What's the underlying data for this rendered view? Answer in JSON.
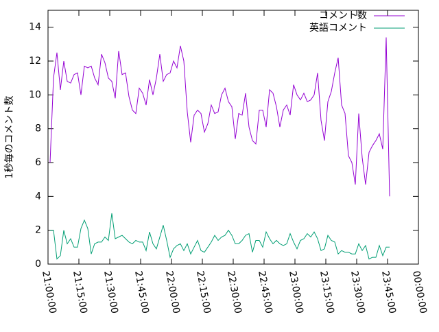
{
  "chart_data": {
    "type": "line",
    "ylabel": "1秒毎のコメント数",
    "x": [
      "21:01:00",
      "21:02:40",
      "21:04:20",
      "21:06:00",
      "21:07:40",
      "21:09:20",
      "21:11:00",
      "21:12:40",
      "21:14:20",
      "21:16:00",
      "21:17:40",
      "21:19:20",
      "21:21:00",
      "21:22:40",
      "21:24:20",
      "21:26:00",
      "21:27:40",
      "21:29:20",
      "21:31:00",
      "21:32:40",
      "21:34:20",
      "21:36:00",
      "21:37:40",
      "21:39:20",
      "21:41:00",
      "21:42:40",
      "21:44:20",
      "21:46:00",
      "21:47:40",
      "21:49:20",
      "21:51:00",
      "21:52:40",
      "21:54:20",
      "21:56:00",
      "21:57:40",
      "21:59:20",
      "22:01:00",
      "22:02:40",
      "22:04:20",
      "22:06:00",
      "22:07:40",
      "22:09:20",
      "22:11:00",
      "22:12:40",
      "22:14:20",
      "22:16:00",
      "22:17:40",
      "22:19:20",
      "22:21:00",
      "22:22:40",
      "22:24:20",
      "22:26:00",
      "22:27:40",
      "22:29:20",
      "22:31:00",
      "22:32:40",
      "22:34:20",
      "22:36:00",
      "22:37:40",
      "22:39:20",
      "22:41:00",
      "22:42:40",
      "22:44:20",
      "22:46:00",
      "22:47:40",
      "22:49:20",
      "22:51:00",
      "22:52:40",
      "22:54:20",
      "22:56:00",
      "22:57:40",
      "22:59:20",
      "23:01:00",
      "23:02:40",
      "23:04:20",
      "23:06:00",
      "23:07:40",
      "23:09:20",
      "23:11:00",
      "23:12:40",
      "23:14:20",
      "23:16:00",
      "23:17:40",
      "23:19:20",
      "23:21:00",
      "23:22:40",
      "23:24:20",
      "23:26:00",
      "23:27:40",
      "23:29:20",
      "23:31:00",
      "23:32:40",
      "23:34:20",
      "23:36:00",
      "23:37:40",
      "23:39:20",
      "23:41:00",
      "23:42:40",
      "23:44:20",
      "23:46:00"
    ],
    "series": [
      {
        "name": "コメント数",
        "color": "#9400d3",
        "values": [
          6.0,
          11,
          12.5,
          10.3,
          12.0,
          10.8,
          10.7,
          11.2,
          11.3,
          10.0,
          11.7,
          11.6,
          11.7,
          11.0,
          10.6,
          12.4,
          11.9,
          11.0,
          10.8,
          9.8,
          12.6,
          11.2,
          11.3,
          9.9,
          9.1,
          8.9,
          10.4,
          10.1,
          9.4,
          10.9,
          10.0,
          11.0,
          12.4,
          10.8,
          11.2,
          11.3,
          12.0,
          11.6,
          12.9,
          12.0,
          9.0,
          7.2,
          8.8,
          9.1,
          8.9,
          7.8,
          8.3,
          9.4,
          8.9,
          9.0,
          10.0,
          10.4,
          9.6,
          9.3,
          7.4,
          8.9,
          8.8,
          10.1,
          8.1,
          7.3,
          7.1,
          9.1,
          9.1,
          8.1,
          10.3,
          10.1,
          9.3,
          8.1,
          9.1,
          9.4,
          8.8,
          10.6,
          10.0,
          9.7,
          10.1,
          9.6,
          9.7,
          10.0,
          11.3,
          8.5,
          7.3,
          9.6,
          10.2,
          11.3,
          12.2,
          9.4,
          8.9,
          6.4,
          6.0,
          4.7,
          8.9,
          6.3,
          4.7,
          6.6,
          7.0,
          7.3,
          7.7,
          6.8,
          13.4,
          4.0
        ]
      },
      {
        "name": "英語コメント",
        "color": "#009e73",
        "values": [
          2.0,
          2.0,
          0.3,
          0.5,
          2.0,
          1.2,
          1.5,
          1.0,
          1.0,
          2.1,
          2.6,
          2.1,
          0.6,
          1.2,
          1.3,
          1.3,
          1.6,
          1.4,
          3.0,
          1.5,
          1.6,
          1.7,
          1.5,
          1.3,
          1.2,
          1.4,
          1.3,
          1.3,
          0.8,
          1.9,
          1.2,
          0.9,
          1.6,
          2.3,
          1.4,
          0.4,
          0.9,
          1.1,
          1.2,
          0.8,
          1.2,
          0.6,
          1.0,
          1.4,
          0.8,
          0.7,
          1.0,
          1.3,
          1.7,
          1.4,
          1.6,
          1.7,
          2.0,
          1.7,
          1.2,
          1.2,
          1.4,
          1.7,
          1.8,
          0.7,
          1.4,
          1.4,
          1.0,
          1.9,
          1.5,
          1.2,
          1.4,
          1.2,
          1.1,
          1.2,
          1.8,
          1.3,
          0.9,
          1.4,
          1.5,
          1.8,
          1.6,
          1.9,
          1.5,
          0.8,
          0.9,
          1.7,
          1.4,
          1.3,
          0.6,
          0.8,
          0.7,
          0.7,
          0.6,
          0.6,
          1.2,
          0.8,
          1.1,
          0.3,
          0.4,
          0.4,
          1.1,
          0.5,
          1.0,
          1.0
        ]
      }
    ],
    "xlim": [
      "21:00:00",
      "00:00:00"
    ],
    "xticks": [
      "21:00:00",
      "21:15:00",
      "21:30:00",
      "21:45:00",
      "22:00:00",
      "22:15:00",
      "22:30:00",
      "22:45:00",
      "23:00:00",
      "23:15:00",
      "23:30:00",
      "23:45:00",
      "00:00:00"
    ],
    "ylim": [
      0,
      15
    ],
    "yticks": [
      0,
      2,
      4,
      6,
      8,
      10,
      12,
      14
    ],
    "legend": "upper right",
    "grid": false
  }
}
